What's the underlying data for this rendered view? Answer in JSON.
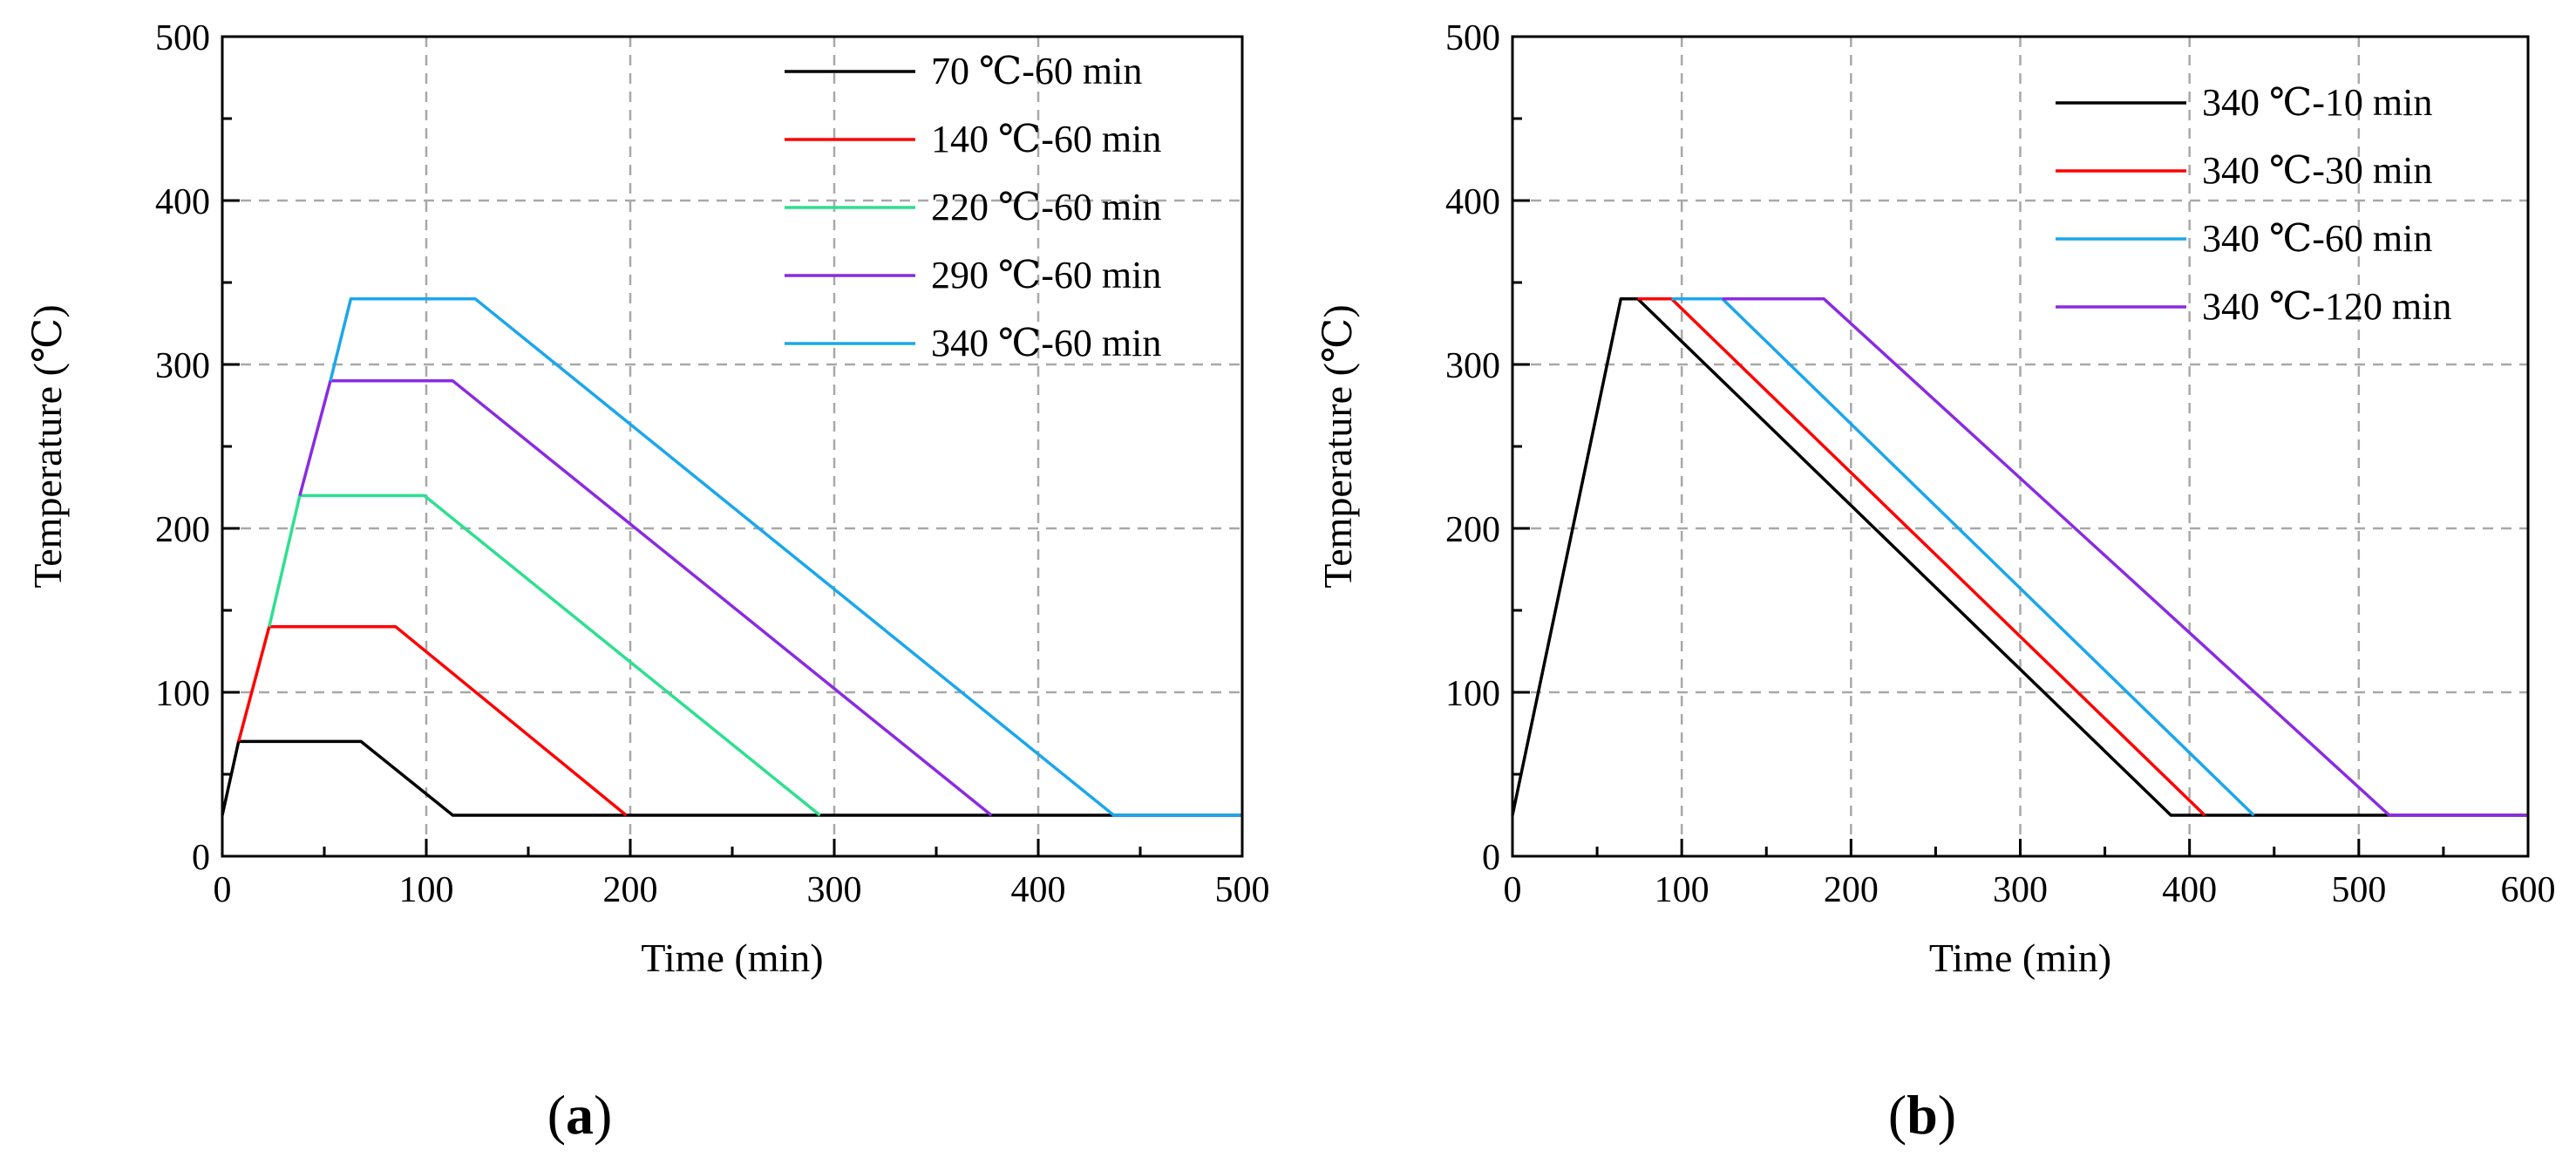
{
  "chart_data": [
    {
      "panel": "a",
      "panel_label": "(a)",
      "panel_label_parts": [
        "(",
        "a",
        ")"
      ],
      "type": "line",
      "xlabel": "Time (min)",
      "ylabel": "Temperature (℃)",
      "xlim": [
        0,
        500
      ],
      "ylim": [
        0,
        500
      ],
      "xticks": [
        0,
        100,
        200,
        300,
        400,
        500
      ],
      "yticks": [
        0,
        100,
        200,
        300,
        400,
        500
      ],
      "grid": true,
      "legend_position": "top-right",
      "series": [
        {
          "name": "70 ℃-60 min",
          "color": "#000000",
          "points": [
            [
              0,
              25
            ],
            [
              8,
              70
            ],
            [
              68,
              70
            ],
            [
              113,
              25
            ],
            [
              500,
              25
            ]
          ]
        },
        {
          "name": "140 ℃-60 min",
          "color": "#ff0000",
          "points": [
            [
              8,
              70
            ],
            [
              23,
              140
            ],
            [
              85,
              140
            ],
            [
              198,
              25
            ]
          ]
        },
        {
          "name": "220 ℃-60 min",
          "color": "#2de08f",
          "points": [
            [
              23,
              140
            ],
            [
              38,
              220
            ],
            [
              99,
              220
            ],
            [
              293,
              25
            ]
          ]
        },
        {
          "name": "290 ℃-60 min",
          "color": "#8a2be2",
          "points": [
            [
              38,
              220
            ],
            [
              53,
              290
            ],
            [
              113,
              290
            ],
            [
              377,
              25
            ]
          ]
        },
        {
          "name": "340 ℃-60 min",
          "color": "#1aa7ec",
          "points": [
            [
              53,
              290
            ],
            [
              63,
              340
            ],
            [
              124,
              340
            ],
            [
              437,
              25
            ],
            [
              500,
              25
            ]
          ]
        }
      ]
    },
    {
      "panel": "b",
      "panel_label": "(b)",
      "panel_label_parts": [
        "(",
        "b",
        ")"
      ],
      "type": "line",
      "xlabel": "Time (min)",
      "ylabel": "Temperature (℃)",
      "xlim": [
        0,
        600
      ],
      "ylim": [
        0,
        500
      ],
      "xticks": [
        0,
        100,
        200,
        300,
        400,
        500,
        600
      ],
      "yticks": [
        0,
        100,
        200,
        300,
        400,
        500
      ],
      "grid": true,
      "legend_position": "top-right",
      "series": [
        {
          "name": "340 ℃-10 min",
          "color": "#000000",
          "points": [
            [
              0,
              25
            ],
            [
              64,
              340
            ],
            [
              74,
              340
            ],
            [
              389,
              25
            ],
            [
              600,
              25
            ]
          ]
        },
        {
          "name": "340 ℃-30 min",
          "color": "#ff0000",
          "points": [
            [
              74,
              340
            ],
            [
              94,
              340
            ],
            [
              409,
              25
            ]
          ]
        },
        {
          "name": "340 ℃-60 min",
          "color": "#1aa7ec",
          "points": [
            [
              94,
              340
            ],
            [
              124,
              340
            ],
            [
              438,
              25
            ]
          ]
        },
        {
          "name": "340 ℃-120 min",
          "color": "#8a2be2",
          "points": [
            [
              124,
              340
            ],
            [
              184,
              340
            ],
            [
              518,
              25
            ],
            [
              600,
              25
            ]
          ]
        }
      ]
    }
  ]
}
